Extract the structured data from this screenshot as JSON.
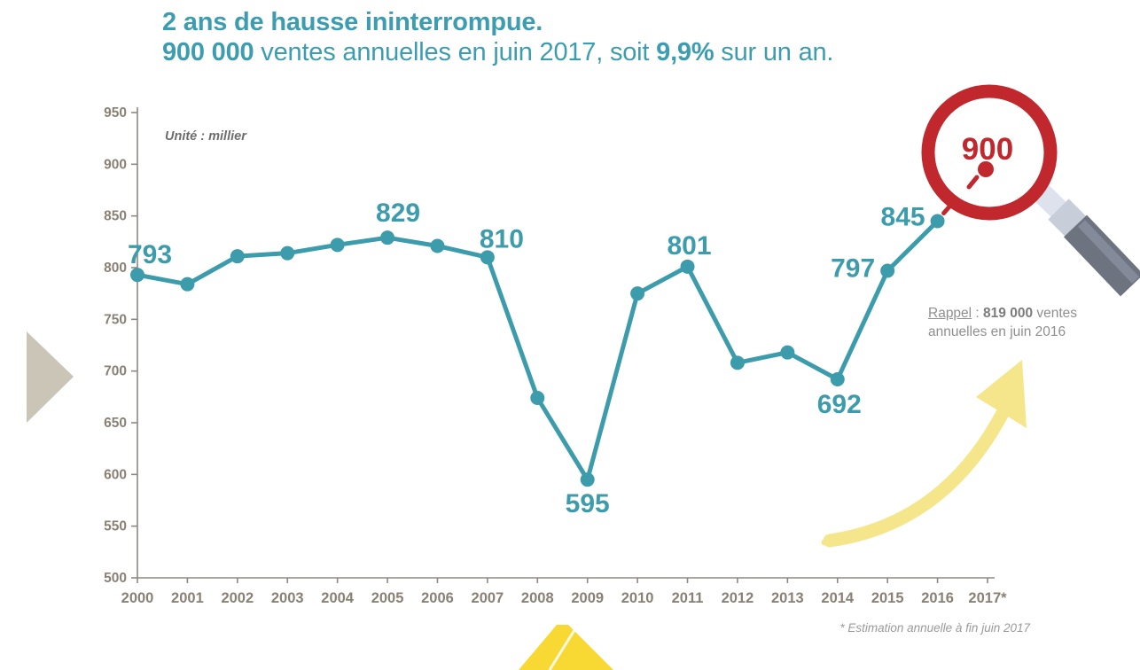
{
  "title": {
    "line1": "2 ans de hausse ininterrompue.",
    "line2_bold1": "900 000",
    "line2_mid": " ventes annuelles en juin 2017, soit ",
    "line2_bold2": "9,9%",
    "line2_end": " sur un an."
  },
  "chart_data": {
    "type": "line",
    "unit_label": "Unité : millier",
    "categories": [
      "2000",
      "2001",
      "2002",
      "2003",
      "2004",
      "2005",
      "2006",
      "2007",
      "2008",
      "2009",
      "2010",
      "2011",
      "2012",
      "2013",
      "2014",
      "2015",
      "2016",
      "2017*"
    ],
    "values": [
      793,
      784,
      811,
      814,
      822,
      829,
      821,
      810,
      674,
      595,
      775,
      801,
      708,
      718,
      692,
      797,
      845,
      900
    ],
    "point_labels": [
      {
        "category": "2000",
        "value": 793
      },
      {
        "category": "2005",
        "value": 829
      },
      {
        "category": "2007",
        "value": 810
      },
      {
        "category": "2009",
        "value": 595
      },
      {
        "category": "2011",
        "value": 801
      },
      {
        "category": "2014",
        "value": 692
      },
      {
        "category": "2015",
        "value": 797
      },
      {
        "category": "2016",
        "value": 845
      }
    ],
    "xlabel": "",
    "ylabel": "",
    "ylim": [
      500,
      950
    ],
    "ytick_step": 50,
    "grid": false,
    "legend": false,
    "line_color": "#3d9cac",
    "axis_color": "#8f8880",
    "axis_label_color": "#8a8174",
    "highlight_color": "#c0282d",
    "last_point_in_magnifier": true
  },
  "magnifier": {
    "value": "900",
    "ring_color": "#c0282d"
  },
  "rappel": {
    "label": "Rappel",
    "separator": " : ",
    "bold_value": "819 000",
    "rest": " ventes annuelles en juin 2016"
  },
  "footnote": "* Estimation annuelle à fin juin 2017",
  "decor": {
    "left_triangle_color": "#cac5b7",
    "yellow_arrow_color": "#f5e68c",
    "bottom_shape_color": "#f8d832"
  }
}
